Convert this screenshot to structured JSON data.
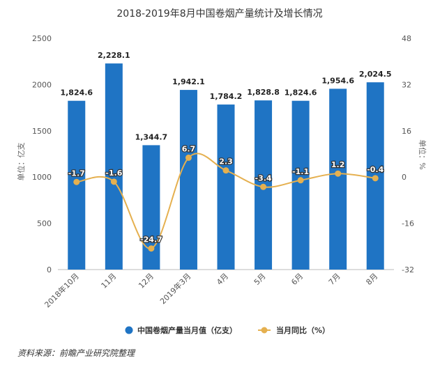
{
  "chart_data": {
    "type": "bar",
    "title": "2018-2019年8月中国卷烟产量统计及增长情况",
    "categories": [
      "2018年10月",
      "11月",
      "12月",
      "2019年3月",
      "4月",
      "5月",
      "6月",
      "7月",
      "8月"
    ],
    "series": [
      {
        "name": "中国卷烟产量当月值（亿支）",
        "type": "bar",
        "axis": "left",
        "color": "#1f74c4",
        "values": [
          1824.6,
          2228.1,
          1344.7,
          1942.1,
          1784.2,
          1828.8,
          1824.6,
          1954.6,
          2024.5
        ],
        "labels": [
          "1,824.6",
          "2,228.1",
          "1,344.7",
          "1,942.1",
          "1,784.2",
          "1,828.8",
          "1,824.6",
          "1,954.6",
          "2,024.5"
        ]
      },
      {
        "name": "当月同比（%）",
        "type": "line",
        "axis": "right",
        "color": "#e5b04f",
        "values": [
          -1.7,
          -1.6,
          -24.7,
          6.7,
          2.3,
          -3.4,
          -1.1,
          1.2,
          -0.4
        ],
        "labels": [
          "-1.7",
          "-1.6",
          "-24.7",
          "6.7",
          "2.3",
          "-3.4",
          "-1.1",
          "1.2",
          "-0.4"
        ]
      }
    ],
    "ylabel_left": "单位：亿支",
    "ylabel_right": "单位：%",
    "ylim_left": [
      0,
      2500
    ],
    "ylim_right": [
      -32,
      48
    ],
    "yticks_left": [
      "0",
      "500",
      "1000",
      "1500",
      "2000",
      "2500"
    ],
    "yticks_right": [
      "-32",
      "-16",
      "0",
      "16",
      "32",
      "48"
    ],
    "legend_position": "bottom",
    "grid": false
  },
  "footer": {
    "source": "资料来源：前瞻产业研究院整理"
  }
}
